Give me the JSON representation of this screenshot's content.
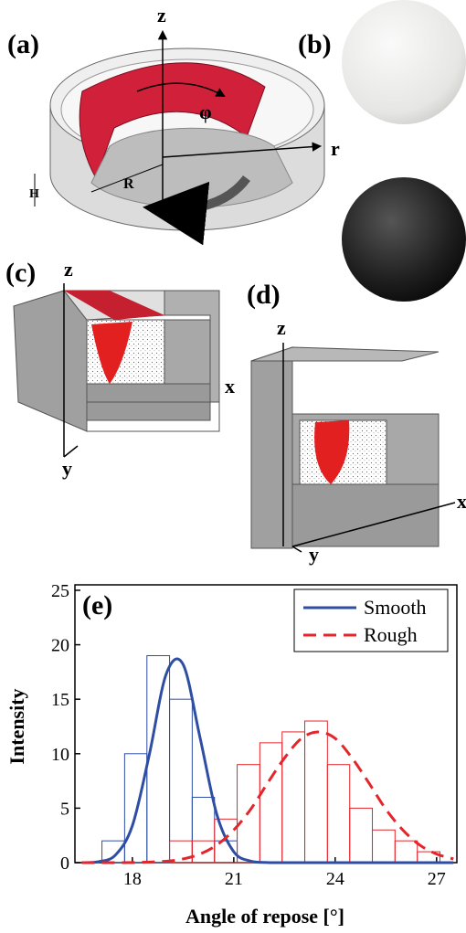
{
  "panel_a": {
    "label": "(a)",
    "z": "z",
    "r": "r",
    "phi": "φ",
    "R": "R",
    "H": "H"
  },
  "panel_b": {
    "label": "(b)"
  },
  "panel_c": {
    "label": "(c)",
    "z": "z",
    "x": "x",
    "y": "y"
  },
  "panel_d": {
    "label": "(d)",
    "z": "z",
    "x": "x",
    "y": "y"
  },
  "chart_data": {
    "type": "histogram",
    "panel_label": "(e)",
    "x_label": "Angle of repose [°]",
    "y_label": "Intensity",
    "xlim": [
      16.3,
      27.6
    ],
    "ylim": [
      0,
      25.5
    ],
    "xticks": [
      18,
      21,
      24,
      27
    ],
    "yticks": [
      0,
      5,
      10,
      15,
      20,
      25
    ],
    "legend": "upper right",
    "series": [
      {
        "name": "Smooth",
        "color": "#2d4ea3",
        "line_style": "solid",
        "bins": [
          17.1,
          17.77,
          18.43,
          19.1,
          19.77,
          20.43,
          21.1
        ],
        "values": [
          2,
          10,
          19,
          15,
          6,
          2
        ],
        "fit": {
          "x": [
            16.5,
            17,
            17.5,
            18,
            18.5,
            19,
            19.5,
            20,
            20.5,
            21,
            21.5,
            22,
            22.5,
            23,
            23.5,
            24,
            24.5,
            25,
            25.5,
            26,
            26.5,
            27,
            27.5
          ],
          "values": [
            0,
            0.09,
            0.7,
            3.4,
            9.9,
            17.3,
            18.2,
            11.5,
            4.4,
            1.0,
            0.14,
            0.01,
            0,
            0,
            0,
            0,
            0,
            0,
            0,
            0,
            0,
            0,
            0
          ]
        }
      },
      {
        "name": "Rough",
        "color": "#e3262b",
        "line_style": "dashed",
        "bins": [
          19.1,
          19.77,
          20.43,
          21.1,
          21.77,
          22.43,
          23.1,
          23.77,
          24.43,
          25.1,
          25.77,
          26.43,
          27.1
        ],
        "values": [
          2,
          2,
          4,
          9,
          11,
          12,
          13,
          9,
          5,
          3,
          2,
          1
        ],
        "fit": {
          "x": [
            16.5,
            17,
            17.5,
            18,
            18.5,
            19,
            19.5,
            20,
            20.5,
            21,
            21.5,
            22,
            22.5,
            23,
            23.5,
            24,
            24.5,
            25,
            25.5,
            26,
            26.5,
            27,
            27.5
          ],
          "values": [
            0,
            0,
            0,
            0.01,
            0.05,
            0.13,
            0.34,
            0.79,
            1.62,
            3.0,
            4.9,
            7.3,
            9.6,
            11.4,
            12,
            11.4,
            9.6,
            7.3,
            4.9,
            3.0,
            1.62,
            0.79,
            0.34
          ]
        }
      }
    ]
  }
}
